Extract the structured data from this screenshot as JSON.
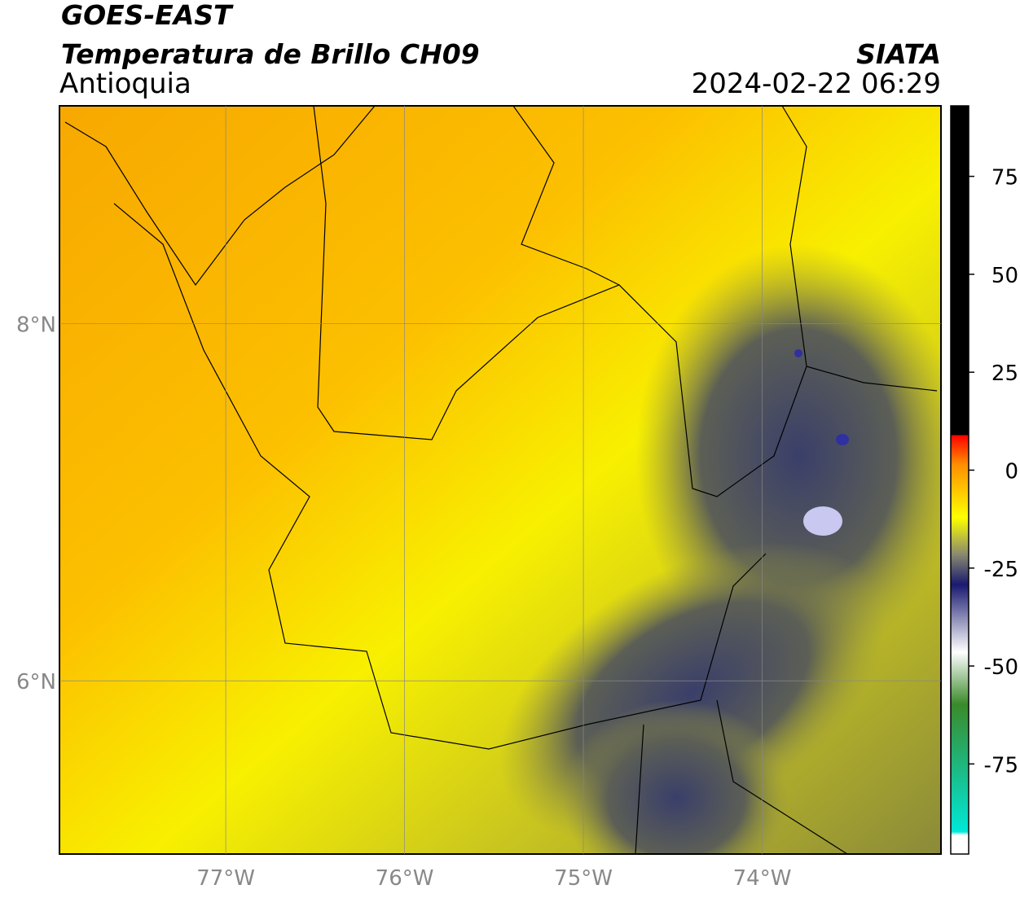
{
  "header": {
    "title": "GOES-EAST",
    "subtitle": "Temperatura de Brillo CH09",
    "region": "Antioquia",
    "agency": "SIATA",
    "timestamp": "2024-02-22 06:29"
  },
  "map": {
    "xlim": [
      -77.93,
      -73.0
    ],
    "ylim": [
      5.03,
      9.22
    ],
    "xticks": [
      {
        "value": -77,
        "label": "77°W"
      },
      {
        "value": -76,
        "label": "76°W"
      },
      {
        "value": -75,
        "label": "75°W"
      },
      {
        "value": -74,
        "label": "74°W"
      }
    ],
    "yticks": [
      {
        "value": 8,
        "label": "8°N"
      },
      {
        "value": 6,
        "label": "6°N"
      }
    ],
    "grid": true
  },
  "colorbar": {
    "lim": [
      -98,
      93
    ],
    "ticks": [
      75,
      50,
      25,
      0,
      -25,
      -50,
      -75
    ]
  }
}
